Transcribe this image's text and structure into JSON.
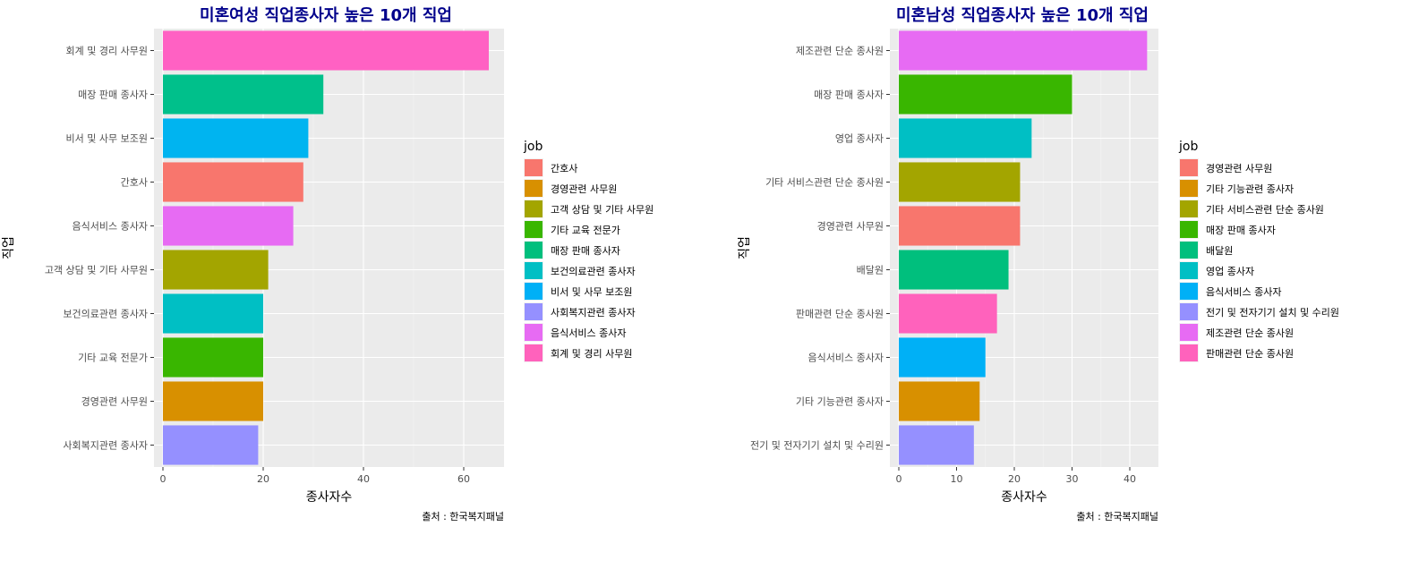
{
  "chart_data": [
    {
      "type": "bar",
      "orientation": "horizontal",
      "title": "미혼여성 직업종사자 높은 10개 직업",
      "xlabel": "종사자수",
      "ylabel": "직업",
      "caption": "출처 : 한국복지패널",
      "xlim": [
        0,
        70
      ],
      "xticks": [
        0,
        20,
        40,
        60
      ],
      "categories": [
        "회계 및 경리 사무원",
        "매장 판매 종사자",
        "비서 및 사무 보조원",
        "간호사",
        "음식서비스 종사자",
        "고객 상담 및 기타 사무원",
        "보건의료관련 종사자",
        "기타 교육 전문가",
        "경영관련 사무원",
        "사회복지관련 종사자"
      ],
      "values": [
        65,
        32,
        29,
        28,
        26,
        21,
        20,
        20,
        20,
        19
      ],
      "colors": [
        "#FF61C3",
        "#00C08B",
        "#00B4F0",
        "#F8766D",
        "#E76BF3",
        "#A3A500",
        "#00BFC4",
        "#39B600",
        "#D89000",
        "#9590FF"
      ],
      "legend": {
        "title": "job",
        "position": "right",
        "items": [
          "간호사",
          "경영관련 사무원",
          "고객 상담 및 기타 사무원",
          "기타 교육 전문가",
          "매장 판매 종사자",
          "보건의료관련 종사자",
          "비서 및 사무 보조원",
          "사회복지관련 종사자",
          "음식서비스 종사자",
          "회계 및 경리 사무원"
        ],
        "colors": [
          "#F8766D",
          "#D89000",
          "#A3A500",
          "#39B600",
          "#00BF7D",
          "#00BFC4",
          "#00B0F6",
          "#9590FF",
          "#E76BF3",
          "#FF62BC"
        ]
      },
      "grid": true
    },
    {
      "type": "bar",
      "orientation": "horizontal",
      "title": "미혼남성 직업종사자 높은 10개 직업",
      "xlabel": "종사자수",
      "ylabel": "직업",
      "caption": "출처 : 한국복지패널",
      "xlim": [
        0,
        45
      ],
      "xticks": [
        0,
        10,
        20,
        30,
        40
      ],
      "categories": [
        "제조관련 단순 종사원",
        "매장 판매 종사자",
        "영업 종사자",
        "기타 서비스관련 단순 종사원",
        "경영관련 사무원",
        "배달원",
        "판매관련 단순 종사원",
        "음식서비스 종사자",
        "기타 기능관련 종사자",
        "전기 및 전자기기 설치 및 수리원"
      ],
      "values": [
        43,
        30,
        23,
        21,
        21,
        19,
        17,
        15,
        14,
        13
      ],
      "colors": [
        "#E76BF3",
        "#39B600",
        "#00BFC4",
        "#A3A500",
        "#F8766D",
        "#00BF7D",
        "#FF62BC",
        "#00B0F6",
        "#D89000",
        "#9590FF"
      ],
      "legend": {
        "title": "job",
        "position": "right",
        "items": [
          "경영관련 사무원",
          "기타 기능관련 종사자",
          "기타 서비스관련 단순 종사원",
          "매장 판매 종사자",
          "배달원",
          "영업 종사자",
          "음식서비스 종사자",
          "전기 및 전자기기 설치 및 수리원",
          "제조관련 단순 종사원",
          "판매관련 단순 종사원"
        ],
        "colors": [
          "#F8766D",
          "#D89000",
          "#A3A500",
          "#39B600",
          "#00BF7D",
          "#00BFC4",
          "#00B0F6",
          "#9590FF",
          "#E76BF3",
          "#FF62BC"
        ]
      },
      "grid": true
    }
  ]
}
